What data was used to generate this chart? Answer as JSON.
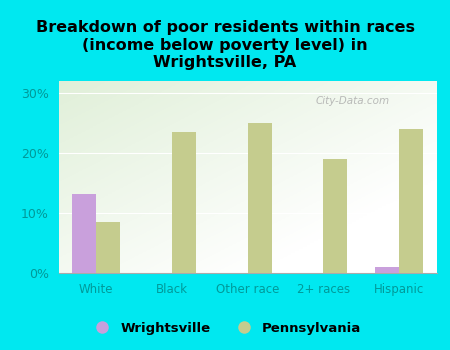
{
  "categories": [
    "White",
    "Black",
    "Other race",
    "2+ races",
    "Hispanic"
  ],
  "wrightsville": [
    13.2,
    0,
    0,
    0,
    1.0
  ],
  "pennsylvania": [
    8.5,
    23.5,
    25.0,
    19.0,
    24.0
  ],
  "wrightsville_color": "#c9a0dc",
  "pennsylvania_color": "#c5cc8e",
  "title": "Breakdown of poor residents within races\n(income below poverty level) in\nWrightsville, PA",
  "title_fontsize": 11.5,
  "title_fontweight": "bold",
  "bg_outer": "#00e8f0",
  "ylim": [
    0,
    32
  ],
  "yticks": [
    0,
    10,
    20,
    30
  ],
  "ytick_labels": [
    "0%",
    "10%",
    "20%",
    "30%"
  ],
  "bar_width": 0.32,
  "watermark": "City-Data.com",
  "legend_wrightsville": "Wrightsville",
  "legend_pennsylvania": "Pennsylvania",
  "tick_label_color": "#009999",
  "ytick_label_color": "#009999"
}
